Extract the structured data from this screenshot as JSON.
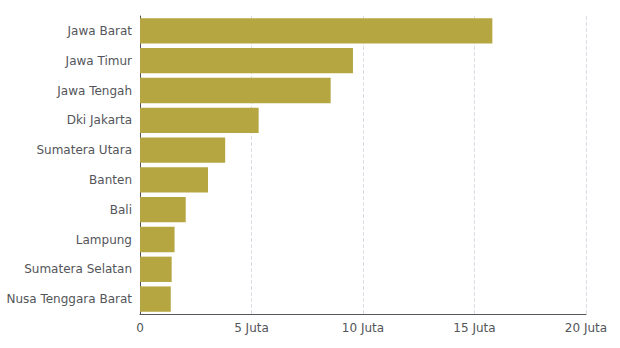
{
  "chart_data": {
    "type": "bar",
    "orientation": "horizontal",
    "categories": [
      "Nusa Tenggara Barat",
      "Sumatera Selatan",
      "Lampung",
      "Bali",
      "Banten",
      "Sumatera Utara",
      "Dki Jakarta",
      "Jawa Tengah",
      "Jawa Timur",
      "Jawa Barat"
    ],
    "values": [
      1.38,
      1.42,
      1.55,
      2.05,
      3.05,
      3.82,
      5.32,
      8.55,
      9.55,
      15.8
    ],
    "color": "#b5a642",
    "xlim": [
      0,
      20
    ],
    "xticks": [
      0,
      {
        "value": 5,
        "label": "5 Juta"
      },
      {
        "value": 10,
        "label": "10 Juta"
      },
      {
        "value": 15,
        "label": "15 Juta"
      },
      {
        "value": 20,
        "label": "20 Juta"
      }
    ],
    "grid": true
  }
}
